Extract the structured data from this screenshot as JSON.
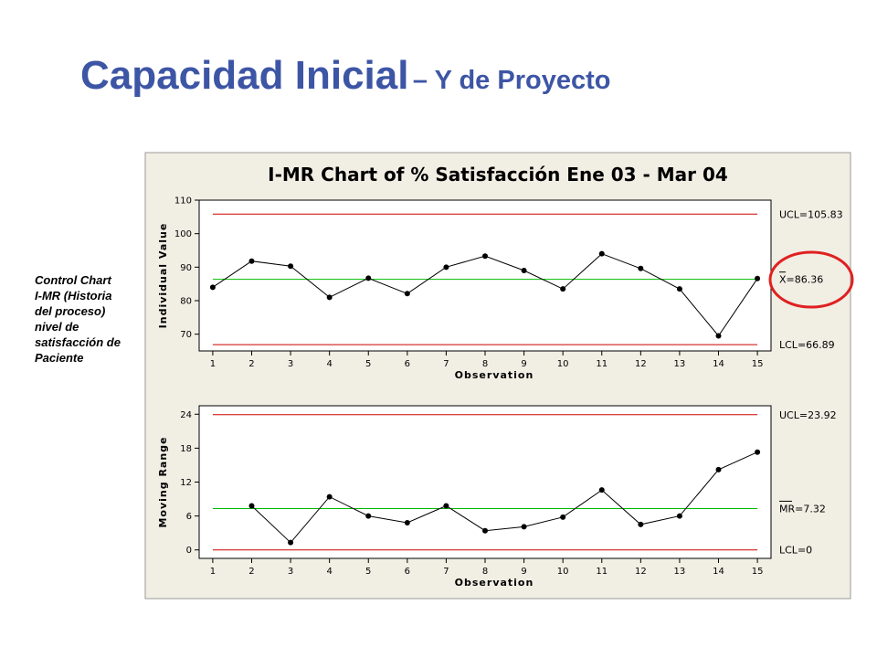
{
  "slide": {
    "title_main": "Capacidad Inicial",
    "title_sub": "– Y de Proyecto",
    "side_note": [
      "Control Chart",
      "I-MR (Historia",
      "del proceso)",
      "nivel de",
      "satisfacción de",
      "Paciente"
    ]
  },
  "colors": {
    "title": "#3d55a5",
    "control_limit": "#cc0000",
    "center_line": "#00bb00",
    "highlight_circle": "#e02020",
    "panel_bg": "#f1eee4"
  },
  "chart_data": {
    "type": "line",
    "title": "I-MR Chart of % Satisfacción Ene 03 - Mar 04",
    "charts": [
      {
        "name": "individual",
        "ylabel": "Individual Value",
        "xlabel": "Observation",
        "ylim": [
          65,
          110
        ],
        "yticks": [
          70,
          80,
          90,
          100,
          110
        ],
        "x": [
          1,
          2,
          3,
          4,
          5,
          6,
          7,
          8,
          9,
          10,
          11,
          12,
          13,
          14,
          15
        ],
        "values": [
          84,
          91.8,
          90.3,
          81,
          86.7,
          82.1,
          90,
          93.3,
          89,
          83.5,
          94,
          89.6,
          83.5,
          69.5,
          86.6
        ],
        "limits": [
          {
            "kind": "ucl",
            "value": 105.83,
            "label": "UCL=105.83"
          },
          {
            "kind": "center",
            "value": 86.36,
            "label": "X=86.36"
          },
          {
            "kind": "lcl",
            "value": 66.89,
            "label": "LCL=66.89"
          }
        ]
      },
      {
        "name": "moving-range",
        "ylabel": "Moving Range",
        "xlabel": "Observation",
        "ylim": [
          -1.5,
          25.5
        ],
        "yticks": [
          0,
          6,
          12,
          18,
          24
        ],
        "x": [
          2,
          3,
          4,
          5,
          6,
          7,
          8,
          9,
          10,
          11,
          12,
          13,
          14,
          15
        ],
        "values": [
          7.8,
          1.3,
          9.4,
          6,
          4.8,
          7.8,
          3.4,
          4.1,
          5.8,
          10.6,
          4.5,
          6,
          14.2,
          17.3
        ],
        "limits": [
          {
            "kind": "ucl",
            "value": 23.92,
            "label": "UCL=23.92"
          },
          {
            "kind": "center",
            "value": 7.32,
            "label": "MR=7.32"
          },
          {
            "kind": "lcl",
            "value": 0,
            "label": "LCL=0"
          }
        ]
      }
    ],
    "x_ticks": [
      1,
      2,
      3,
      4,
      5,
      6,
      7,
      8,
      9,
      10,
      11,
      12,
      13,
      14,
      15
    ]
  }
}
